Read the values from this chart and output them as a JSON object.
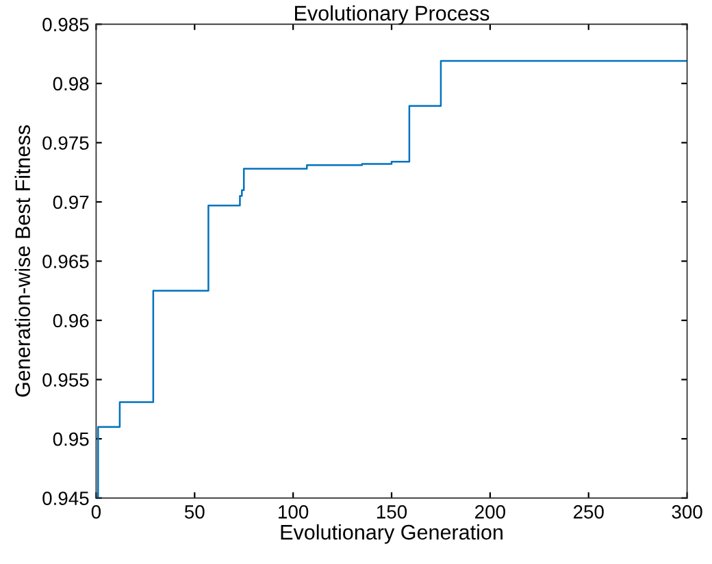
{
  "chart_data": {
    "type": "step",
    "title": "Evolutionary Process",
    "xlabel": "Evolutionary Generation",
    "ylabel": "Generation-wise Best Fitness",
    "series": [
      {
        "color": "#0072bd",
        "x": [
          0,
          1,
          12,
          29,
          57,
          73,
          74,
          75,
          107,
          135,
          150,
          159,
          175,
          300
        ],
        "values": [
          0.9451,
          0.951,
          0.9531,
          0.9625,
          0.9697,
          0.9705,
          0.971,
          0.9728,
          0.9731,
          0.9732,
          0.9734,
          0.9781,
          0.9819,
          0.9819
        ]
      }
    ],
    "xlim": [
      0,
      300
    ],
    "xticks": [
      0,
      50,
      100,
      150,
      200,
      250,
      300
    ],
    "ylim": [
      0.945,
      0.985
    ],
    "yticks": [
      0.945,
      0.95,
      0.955,
      0.96,
      0.965,
      0.97,
      0.975,
      0.98,
      0.985
    ],
    "grid": false,
    "legend": false
  }
}
